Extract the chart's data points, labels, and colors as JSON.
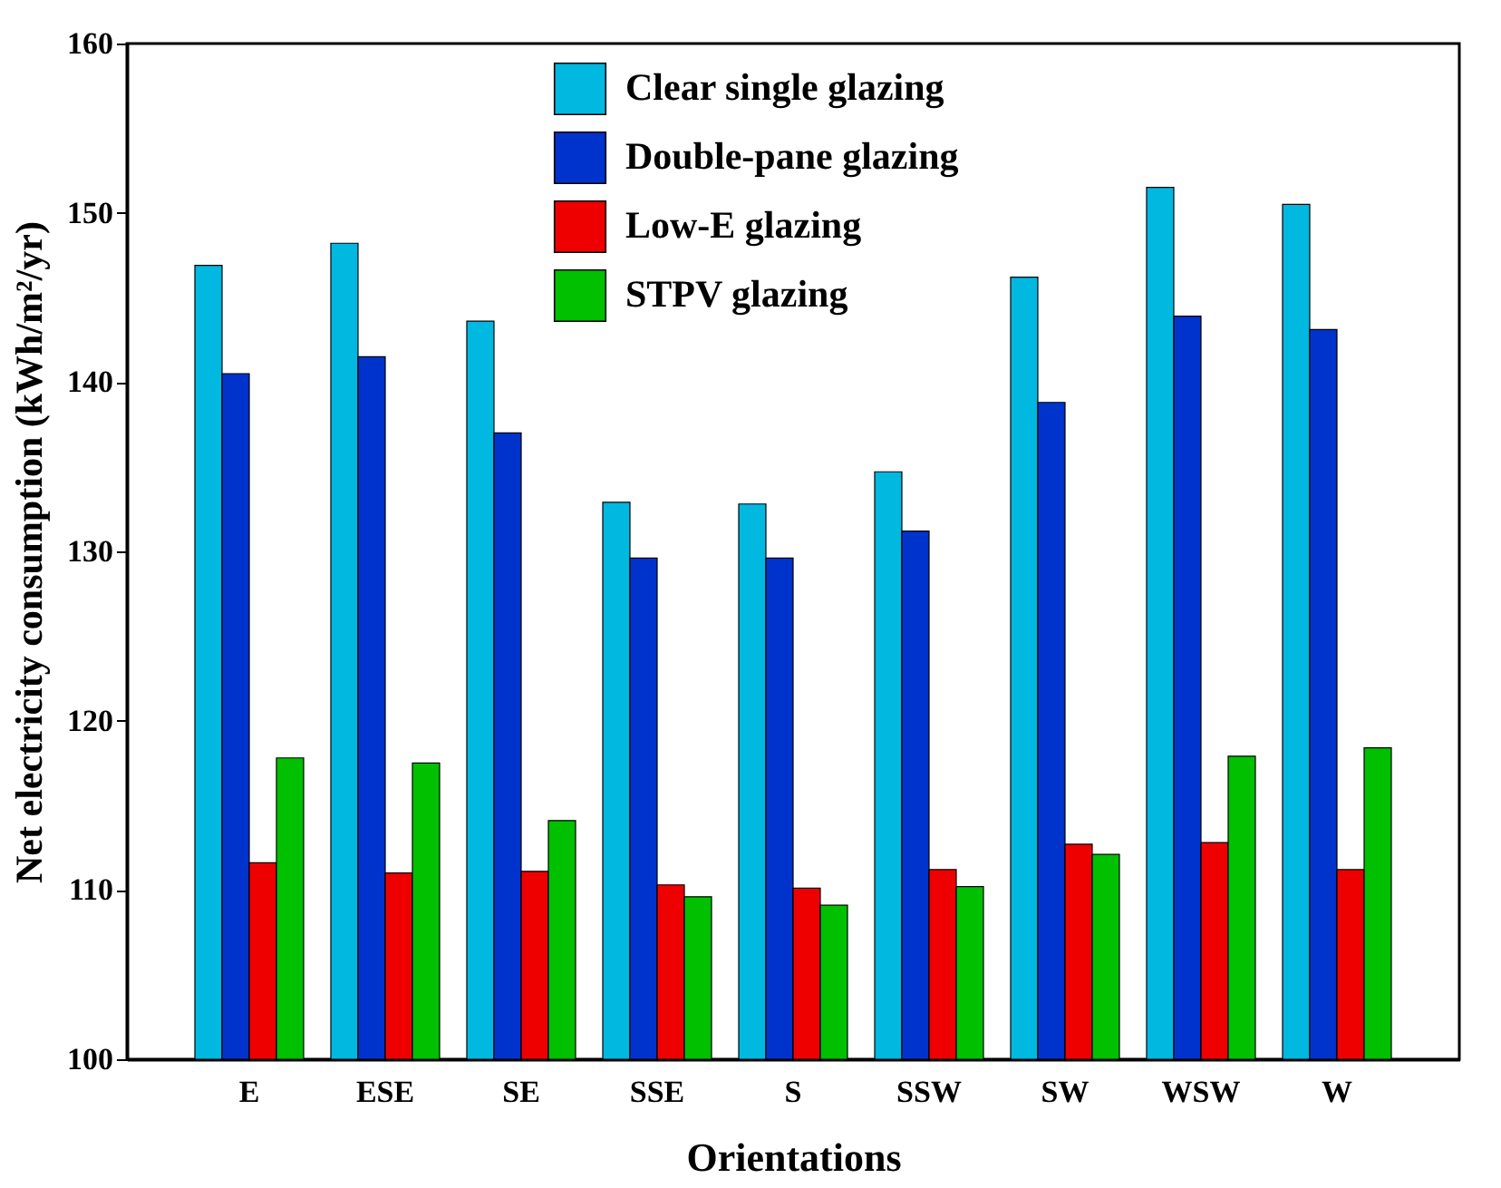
{
  "chart_data": {
    "type": "bar",
    "xlabel": "Orientations",
    "ylabel": "Net electricity consumption (kWh/m²/yr)",
    "categories": [
      "E",
      "ESE",
      "SE",
      "SSE",
      "S",
      "SSW",
      "SW",
      "WSW",
      "W"
    ],
    "series": [
      {
        "name": "Clear single glazing",
        "color": "#00b8e0",
        "values": [
          146.9,
          148.2,
          143.6,
          132.9,
          132.8,
          134.7,
          146.2,
          151.5,
          150.5
        ]
      },
      {
        "name": "Double-pane glazing",
        "color": "#0033cc",
        "values": [
          140.5,
          141.5,
          137.0,
          129.6,
          129.6,
          131.2,
          138.8,
          143.9,
          143.1
        ]
      },
      {
        "name": "Low-E glazing",
        "color": "#ee0000",
        "values": [
          111.6,
          111.0,
          111.1,
          110.3,
          110.1,
          111.2,
          112.7,
          112.8,
          111.2
        ]
      },
      {
        "name": "STPV glazing",
        "color": "#00c000",
        "values": [
          117.8,
          117.5,
          114.1,
          109.6,
          109.1,
          110.2,
          112.1,
          117.9,
          118.4
        ]
      }
    ],
    "ylim": [
      100,
      160
    ],
    "yticks": [
      100,
      110,
      120,
      130,
      140,
      150,
      160
    ],
    "grid": false,
    "legend": "top"
  }
}
